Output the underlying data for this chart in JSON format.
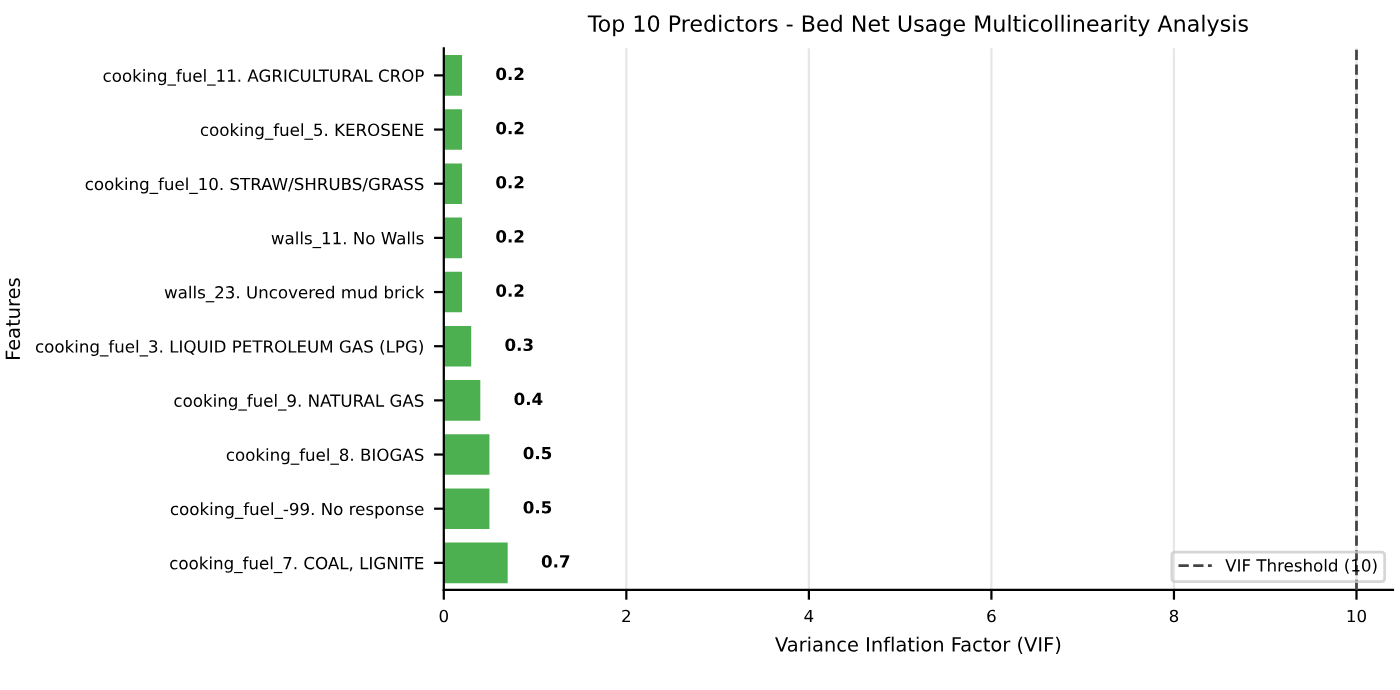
{
  "chart_data": {
    "type": "bar",
    "orientation": "horizontal",
    "title": "Top 10 Predictors - Bed Net Usage Multicollinearity Analysis",
    "xlabel": "Variance Inflation Factor (VIF)",
    "ylabel": "Features",
    "categories": [
      "cooking_fuel_11. AGRICULTURAL CROP",
      "cooking_fuel_5. KEROSENE",
      "cooking_fuel_10. STRAW/SHRUBS/GRASS",
      "walls_11. No Walls",
      "walls_23. Uncovered mud brick",
      "cooking_fuel_3. LIQUID PETROLEUM GAS (LPG)",
      "cooking_fuel_9. NATURAL GAS",
      "cooking_fuel_8. BIOGAS",
      "cooking_fuel_-99. No response",
      "cooking_fuel_7. COAL, LIGNITE"
    ],
    "values": [
      0.2,
      0.2,
      0.2,
      0.2,
      0.2,
      0.3,
      0.4,
      0.5,
      0.5,
      0.7
    ],
    "color": "#4caf50",
    "data_labels": true,
    "xlim": [
      0,
      10.4
    ],
    "xticks": [
      0,
      2,
      4,
      6,
      8,
      10
    ],
    "grid": "x",
    "legend": "bottom right",
    "ref_lines": [
      {
        "axis": "x",
        "value": 10,
        "label": "VIF Threshold (10)",
        "color": "#444444",
        "line_style": "dashed"
      }
    ]
  }
}
